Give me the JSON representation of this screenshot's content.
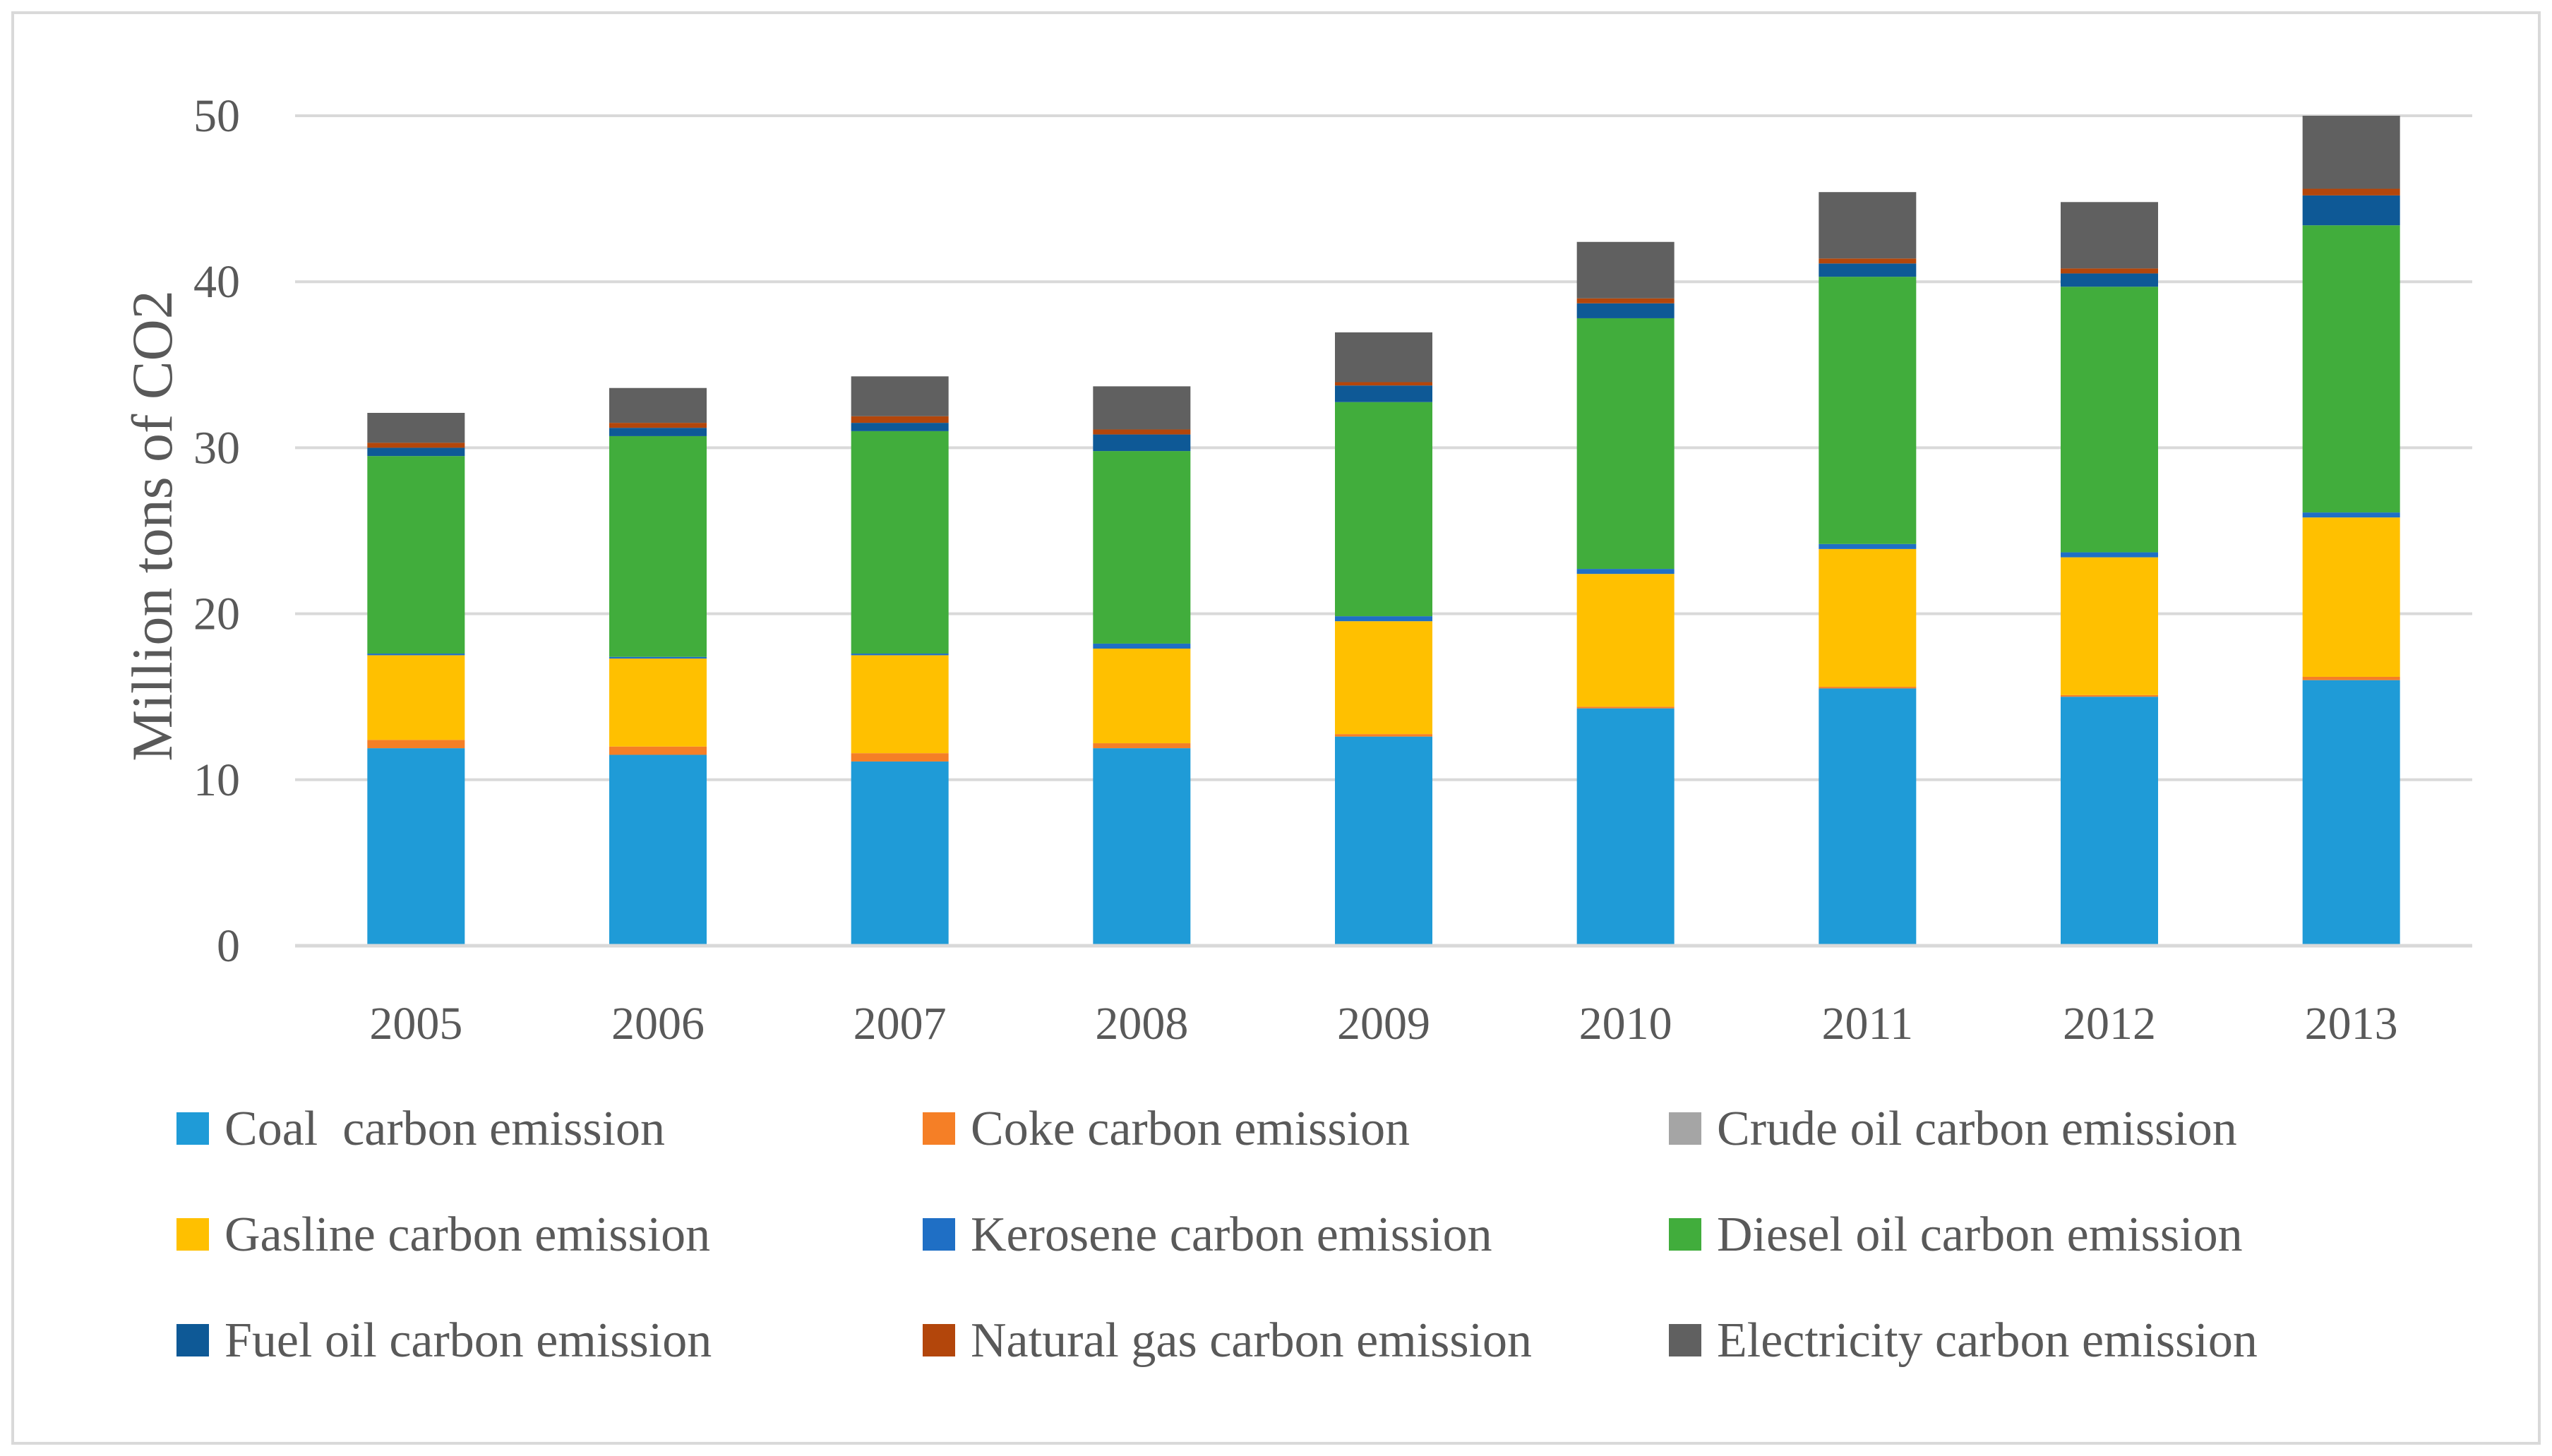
{
  "chart_data": {
    "type": "stacked-bar",
    "title": "",
    "xlabel": "",
    "ylabel": "Million tons of CO2",
    "ylim": [
      0,
      50
    ],
    "yticks": [
      0,
      10,
      20,
      30,
      40,
      50
    ],
    "grid": true,
    "legend_position": "bottom",
    "categories": [
      "2005",
      "2006",
      "2007",
      "2008",
      "2009",
      "2010",
      "2011",
      "2012",
      "2013"
    ],
    "series": [
      {
        "name": "Coal  carbon emission",
        "color": "#1f9bd7",
        "values": [
          11.9,
          11.5,
          11.1,
          11.9,
          12.6,
          14.3,
          15.5,
          15.0,
          16.0
        ]
      },
      {
        "name": "Coke carbon emission",
        "color": "#f57f26",
        "values": [
          0.5,
          0.5,
          0.5,
          0.3,
          0.15,
          0.1,
          0.1,
          0.1,
          0.2
        ]
      },
      {
        "name": "Crude oil carbon emission",
        "color": "#a5a5a5",
        "values": [
          0.0,
          0.0,
          0.0,
          0.0,
          0.0,
          0.0,
          0.0,
          0.0,
          0.0
        ]
      },
      {
        "name": "Gasline carbon emission",
        "color": "#ffc000",
        "values": [
          5.1,
          5.3,
          5.9,
          5.7,
          6.8,
          8.0,
          8.3,
          8.3,
          9.6
        ]
      },
      {
        "name": "Kerosene carbon emission",
        "color": "#1f6fc5",
        "values": [
          0.1,
          0.1,
          0.1,
          0.3,
          0.3,
          0.3,
          0.3,
          0.3,
          0.3
        ]
      },
      {
        "name": "Diesel oil carbon emission",
        "color": "#41ad3c",
        "values": [
          11.9,
          13.3,
          13.4,
          11.6,
          12.9,
          15.1,
          16.1,
          16.0,
          17.3
        ]
      },
      {
        "name": "Fuel oil carbon emission",
        "color": "#0e5996",
        "values": [
          0.5,
          0.5,
          0.5,
          1.0,
          1.0,
          0.9,
          0.8,
          0.8,
          1.8
        ]
      },
      {
        "name": "Natural gas carbon emission",
        "color": "#b3460b",
        "values": [
          0.3,
          0.3,
          0.4,
          0.3,
          0.2,
          0.3,
          0.3,
          0.3,
          0.4
        ]
      },
      {
        "name": "Electricity carbon emission",
        "color": "#606060",
        "values": [
          1.8,
          2.1,
          2.4,
          2.6,
          3.0,
          3.4,
          4.0,
          4.0,
          4.4
        ]
      }
    ]
  }
}
